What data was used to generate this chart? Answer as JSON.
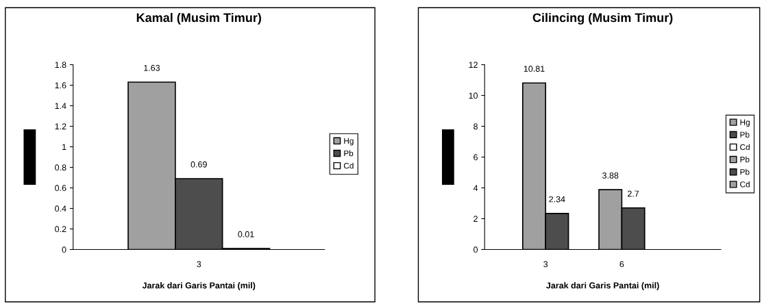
{
  "chart_data": [
    {
      "type": "bar",
      "title": "Kamal (Musim Timur)",
      "xlabel": "Jarak dari Garis Pantai (mil)",
      "categories": [
        "3"
      ],
      "series": [
        {
          "name": "Hg",
          "color": "#a0a0a0",
          "values": [
            1.63
          ]
        },
        {
          "name": "Pb",
          "color": "#4d4d4d",
          "values": [
            0.69
          ]
        },
        {
          "name": "Cd",
          "color": "#ffffff",
          "values": [
            0.01
          ]
        }
      ],
      "ylim": [
        0,
        1.8
      ],
      "yticks": [
        0,
        0.2,
        0.4,
        0.6,
        0.8,
        1,
        1.2,
        1.4,
        1.6,
        1.8
      ],
      "data_labels": true,
      "legend": "right",
      "grid": false
    },
    {
      "type": "bar",
      "title": "Cilincing (Musim Timur)",
      "xlabel": "Jarak dari Garis Pantai (mil)",
      "categories": [
        "3",
        "6"
      ],
      "series": [
        {
          "name": "Hg",
          "color": "#a0a0a0",
          "values": [
            10.81,
            null
          ]
        },
        {
          "name": "Pb",
          "color": "#4d4d4d",
          "values": [
            2.34,
            null
          ]
        },
        {
          "name": "Cd",
          "color": "#ffffff",
          "values": [
            null,
            null
          ]
        },
        {
          "name": "Pb",
          "color": "#a0a0a0",
          "values": [
            null,
            3.88
          ]
        },
        {
          "name": "Pb",
          "color": "#4d4d4d",
          "values": [
            null,
            2.7
          ]
        },
        {
          "name": "Cd",
          "color": "#a0a0a0",
          "values": [
            null,
            null
          ]
        }
      ],
      "ylim": [
        0,
        12
      ],
      "yticks": [
        0,
        2,
        4,
        6,
        8,
        10,
        12
      ],
      "data_labels": true,
      "legend": "right",
      "grid": false
    }
  ]
}
